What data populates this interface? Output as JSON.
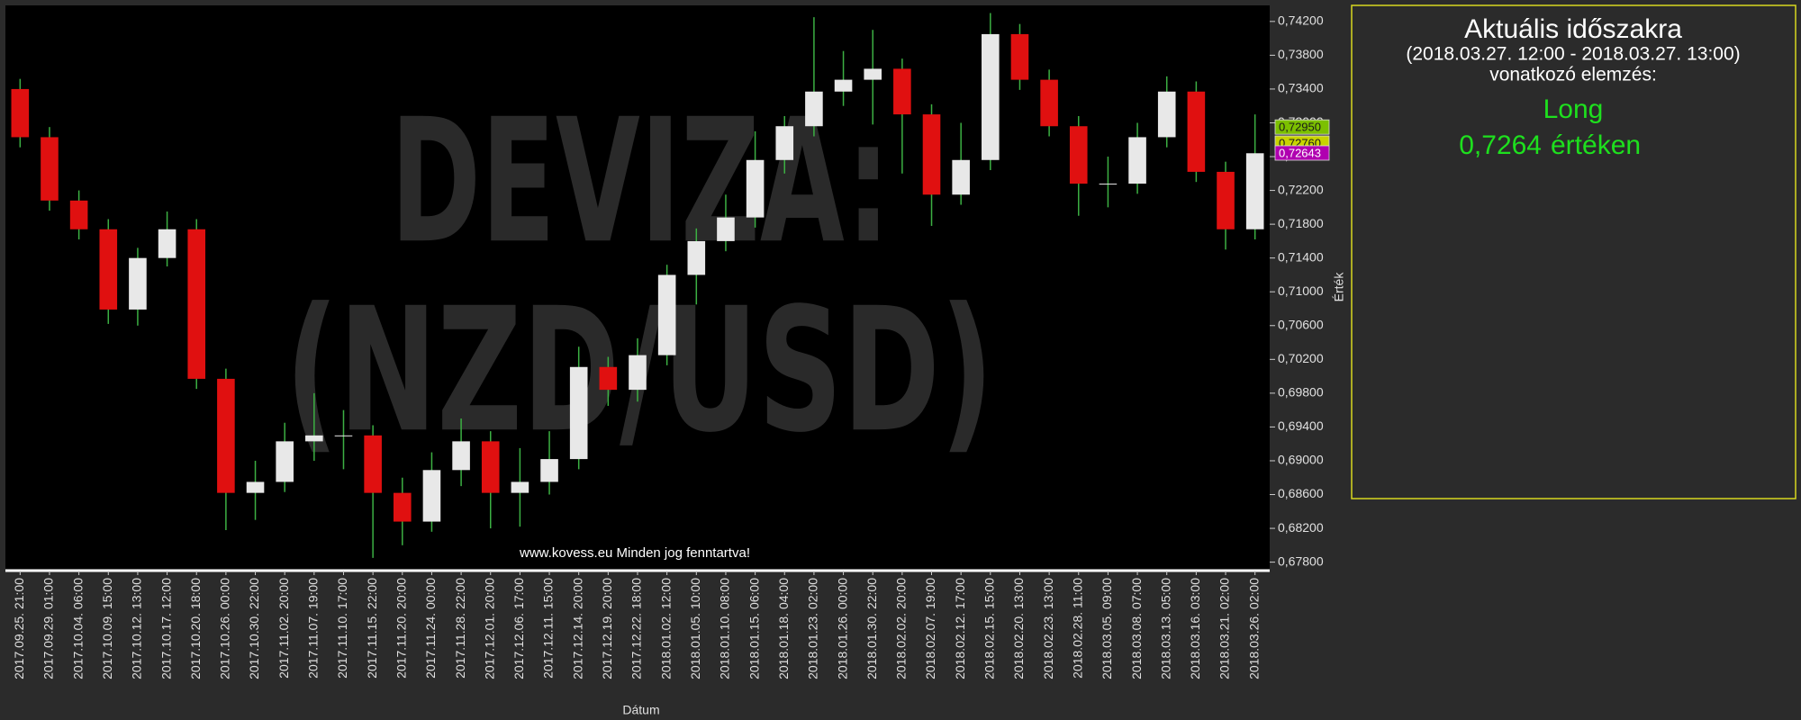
{
  "chart_data": {
    "type": "candlestick",
    "watermark": [
      "DEVIZA:",
      "(NZD/USD)"
    ],
    "footer": "www.kovess.eu Minden jog fenntartva!",
    "x_label": "Dátum",
    "y_label": "Érték",
    "x": [
      "2017.09.25. 21:00",
      "2017.09.29. 01:00",
      "2017.10.04. 06:00",
      "2017.10.09. 15:00",
      "2017.10.12. 13:00",
      "2017.10.17. 12:00",
      "2017.10.20. 18:00",
      "2017.10.26. 00:00",
      "2017.10.30. 22:00",
      "2017.11.02. 20:00",
      "2017.11.07. 19:00",
      "2017.11.10. 17:00",
      "2017.11.15. 22:00",
      "2017.11.20. 20:00",
      "2017.11.24. 00:00",
      "2017.11.28. 22:00",
      "2017.12.01. 20:00",
      "2017.12.06. 17:00",
      "2017.12.11. 15:00",
      "2017.12.14. 20:00",
      "2017.12.19. 20:00",
      "2017.12.22. 18:00",
      "2018.01.02. 12:00",
      "2018.01.05. 10:00",
      "2018.01.10. 08:00",
      "2018.01.15. 06:00",
      "2018.01.18. 04:00",
      "2018.01.23. 02:00",
      "2018.01.26. 00:00",
      "2018.01.30. 22:00",
      "2018.02.02. 20:00",
      "2018.02.07. 19:00",
      "2018.02.12. 17:00",
      "2018.02.15. 15:00",
      "2018.02.20. 13:00",
      "2018.02.23. 13:00",
      "2018.02.28. 11:00",
      "2018.03.05. 09:00",
      "2018.03.08. 07:00",
      "2018.03.13. 05:00",
      "2018.03.16. 03:00",
      "2018.03.21. 02:00",
      "2018.03.26. 02:00"
    ],
    "open": [
      0.734,
      0.7283,
      0.7208,
      0.7174,
      0.7079,
      0.714,
      0.7174,
      0.6997,
      0.6862,
      0.6875,
      0.6923,
      0.693,
      0.693,
      0.6862,
      0.6828,
      0.6889,
      0.6923,
      0.6862,
      0.6875,
      0.6902,
      0.7011,
      0.6984,
      0.7025,
      0.712,
      0.716,
      0.7188,
      0.7256,
      0.7296,
      0.7337,
      0.7351,
      0.7364,
      0.731,
      0.7215,
      0.7256,
      0.7405,
      0.7351,
      0.7296,
      0.7228,
      0.7228,
      0.7283,
      0.7337,
      0.7242,
      0.7174
    ],
    "high": [
      0.7352,
      0.7295,
      0.722,
      0.7186,
      0.7152,
      0.7195,
      0.7186,
      0.7009,
      0.69,
      0.6945,
      0.698,
      0.696,
      0.6942,
      0.688,
      0.691,
      0.695,
      0.6935,
      0.6915,
      0.6935,
      0.7035,
      0.7023,
      0.7045,
      0.7132,
      0.7175,
      0.7215,
      0.729,
      0.7308,
      0.7425,
      0.7385,
      0.741,
      0.7376,
      0.7322,
      0.73,
      0.743,
      0.7417,
      0.7363,
      0.7308,
      0.726,
      0.73,
      0.7355,
      0.7349,
      0.7254,
      0.731
    ],
    "low": [
      0.7271,
      0.7196,
      0.7162,
      0.7062,
      0.706,
      0.713,
      0.6985,
      0.6818,
      0.683,
      0.6863,
      0.69,
      0.689,
      0.6785,
      0.68,
      0.6816,
      0.687,
      0.682,
      0.6822,
      0.686,
      0.689,
      0.6965,
      0.697,
      0.7013,
      0.7085,
      0.7148,
      0.7176,
      0.724,
      0.7284,
      0.732,
      0.7298,
      0.724,
      0.7178,
      0.7203,
      0.7244,
      0.7339,
      0.7284,
      0.719,
      0.72,
      0.7216,
      0.7271,
      0.723,
      0.715,
      0.7162
    ],
    "close": [
      0.7283,
      0.7208,
      0.7174,
      0.7079,
      0.714,
      0.7174,
      0.6997,
      0.6862,
      0.6875,
      0.6923,
      0.693,
      0.693,
      0.6862,
      0.6828,
      0.6889,
      0.6923,
      0.6862,
      0.6875,
      0.6902,
      0.7011,
      0.6984,
      0.7025,
      0.712,
      0.716,
      0.7188,
      0.7256,
      0.7296,
      0.7337,
      0.7351,
      0.7364,
      0.731,
      0.7215,
      0.7256,
      0.7405,
      0.7351,
      0.7296,
      0.7228,
      0.7228,
      0.7283,
      0.7337,
      0.7242,
      0.7174,
      0.7264
    ],
    "up_color": "#e8e8e8",
    "down_color": "#e01010",
    "wick_color": "#3cb043",
    "ylim": [
      0.677,
      0.7439
    ],
    "yticks": [
      {
        "value": 0.742,
        "label": "0,74200"
      },
      {
        "value": 0.738,
        "label": "0,73800"
      },
      {
        "value": 0.734,
        "label": "0,73400"
      },
      {
        "value": 0.73,
        "label": "0,73000"
      },
      {
        "value": 0.726,
        "label": "0,72600"
      },
      {
        "value": 0.722,
        "label": "0,72200"
      },
      {
        "value": 0.718,
        "label": "0,71800"
      },
      {
        "value": 0.714,
        "label": "0,71400"
      },
      {
        "value": 0.71,
        "label": "0,71000"
      },
      {
        "value": 0.706,
        "label": "0,70600"
      },
      {
        "value": 0.702,
        "label": "0,70200"
      },
      {
        "value": 0.698,
        "label": "0,69800"
      },
      {
        "value": 0.694,
        "label": "0,69400"
      },
      {
        "value": 0.69,
        "label": "0,69000"
      },
      {
        "value": 0.686,
        "label": "0,68600"
      },
      {
        "value": 0.682,
        "label": "0,68200"
      },
      {
        "value": 0.678,
        "label": "0,67800"
      }
    ],
    "price_tags": {
      "values": [
        0.7295,
        0.7276,
        0.72643
      ],
      "value_labels": [
        "0,72950",
        "0,72760",
        "0,72643"
      ],
      "colors": [
        "#7cc000",
        "#c8d400",
        "#b000b0"
      ]
    },
    "panel": {
      "title": "Aktuális időszakra",
      "period": "(2018.03.27. 12:00 - 2018.03.27. 13:00)",
      "subtitle": "vonatkozó elemzés:",
      "signal": "Long",
      "price": "0,7264",
      "price_suffix": "értéken"
    }
  }
}
